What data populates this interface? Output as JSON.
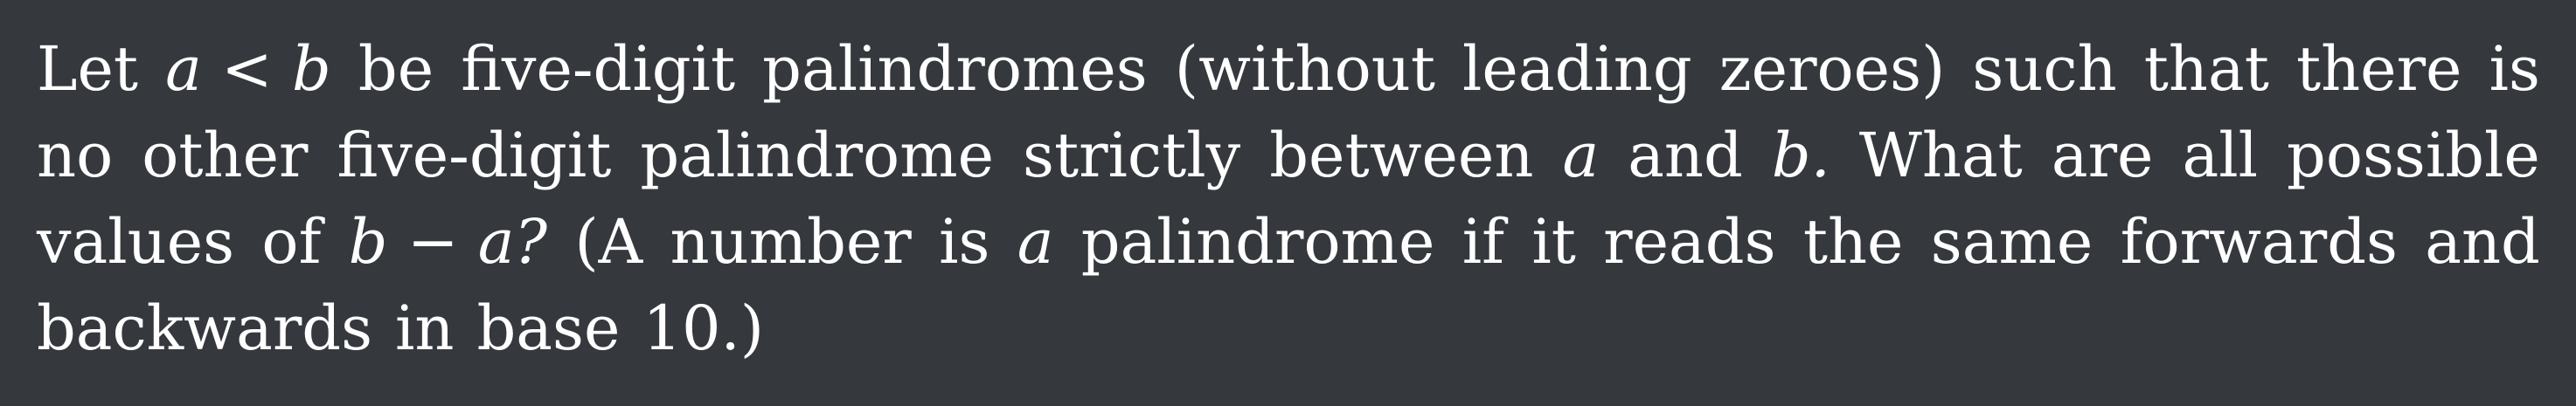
{
  "problem": {
    "lines": [
      [
        "Let",
        "a < b",
        "be",
        "five-digit",
        "palindromes",
        "(without",
        "leading",
        "zeroes)",
        "such",
        "that",
        "there",
        "is"
      ],
      [
        "no",
        "other",
        "five-digit",
        "palindrome",
        "strictly",
        "between",
        "a",
        "and",
        "b.",
        "What",
        "are",
        "all",
        "possible"
      ],
      [
        "values",
        "of",
        "b − a?",
        "(A",
        "number",
        "is",
        "a",
        "palindrome",
        "if",
        "it",
        "reads",
        "the",
        "same",
        "forwards",
        "and"
      ],
      [
        "backwards",
        "in",
        "base",
        "10.)"
      ]
    ],
    "math_words": [
      "a < b",
      "a",
      "b.",
      "b − a?"
    ]
  }
}
